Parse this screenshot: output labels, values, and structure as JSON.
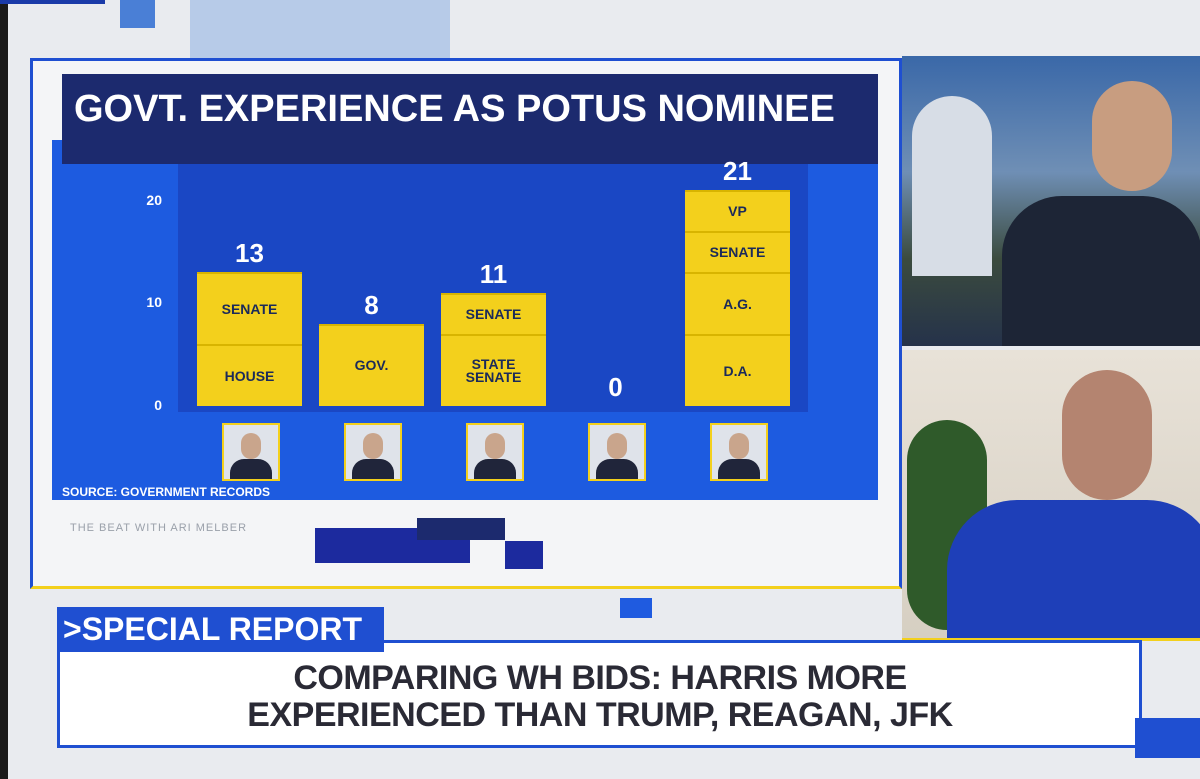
{
  "chart_data": {
    "type": "stacked-bar",
    "title": "GOVT. EXPERIENCE AS POTUS NOMINEE",
    "source": "SOURCE: GOVERNMENT RECORDS",
    "color": "#f3d01c",
    "ylim": [
      0,
      22
    ],
    "yticks": [
      0,
      10,
      20
    ],
    "bars": [
      {
        "total": 13,
        "segments": [
          {
            "label": "HOUSE",
            "value": 6
          },
          {
            "label": "SENATE",
            "value": 7
          }
        ]
      },
      {
        "total": 8,
        "segments": [
          {
            "label": "GOV.",
            "value": 8
          }
        ]
      },
      {
        "total": 11,
        "segments": [
          {
            "label": "STATE SENATE",
            "value": 7
          },
          {
            "label": "SENATE",
            "value": 4
          }
        ]
      },
      {
        "total": 0,
        "segments": []
      },
      {
        "total": 21,
        "segments": [
          {
            "label": "D.A.",
            "value": 7
          },
          {
            "label": "A.G.",
            "value": 6
          },
          {
            "label": "SENATE",
            "value": 4
          },
          {
            "label": "VP",
            "value": 4
          }
        ]
      }
    ]
  },
  "ticker": "THE BEAT WITH ARI MELBER",
  "lower_third": {
    "tag": ">SPECIAL REPORT",
    "headline": [
      "COMPARING WH BIDS: HARRIS MORE",
      "EXPERIENCED THAN TRUMP, REAGAN, JFK"
    ]
  }
}
